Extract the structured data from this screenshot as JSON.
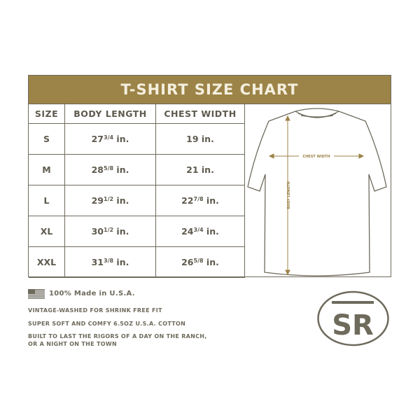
{
  "title": "T-SHIRT SIZE CHART",
  "headers": [
    "SIZE",
    "BODY LENGTH",
    "CHEST WIDTH"
  ],
  "rows": [
    {
      "size": "S",
      "length_whole": "27",
      "length_frac": "3/4",
      "length_unit": " in.",
      "chest_whole": "19",
      "chest_frac": "",
      "chest_unit": " in."
    },
    {
      "size": "M",
      "length_whole": "28",
      "length_frac": "5/8",
      "length_unit": " in.",
      "chest_whole": "21",
      "chest_frac": "",
      "chest_unit": " in."
    },
    {
      "size": "L",
      "length_whole": "29",
      "length_frac": "1/2",
      "length_unit": " in.",
      "chest_whole": "22",
      "chest_frac": "7/8",
      "chest_unit": " in."
    },
    {
      "size": "XL",
      "length_whole": "30",
      "length_frac": "1/2",
      "length_unit": " in.",
      "chest_whole": "24",
      "chest_frac": "3/4",
      "chest_unit": " in."
    },
    {
      "size": "XXL",
      "length_whole": "31",
      "length_frac": "3/8",
      "length_unit": " in.",
      "chest_whole": "26",
      "chest_frac": "5/8",
      "chest_unit": " in."
    }
  ],
  "diagram": {
    "chest_label": "CHEST WIDTH",
    "length_label": "BODY LENGTH"
  },
  "footer": {
    "made_in": "100% Made in U.S.A.",
    "features": [
      "VINTAGE-WASHED FOR SHRINK FREE FIT",
      "SUPER SOFT AND COMFY 6.5OZ U.S.A. COTTON",
      "BUILT TO LAST THE RIGORS OF A DAY ON THE RANCH,",
      "OR A NIGHT ON THE TOWN"
    ]
  },
  "logo": {
    "text": "SR"
  },
  "colors": {
    "gold": "#9c8347",
    "ink": "#5e5a4e"
  }
}
